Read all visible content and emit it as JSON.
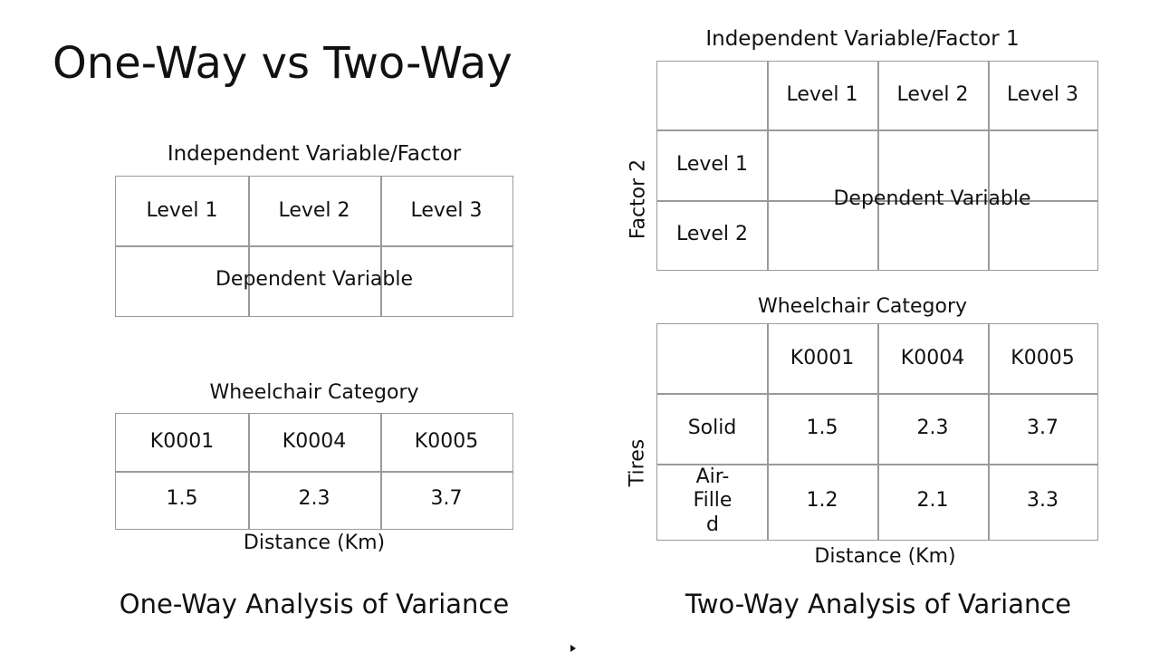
{
  "title": "One-Way vs Two-Way",
  "one_way": {
    "factor_label": "Independent Variable/Factor",
    "levels": [
      "Level 1",
      "Level 2",
      "Level 3"
    ],
    "dependent": "Dependent Variable",
    "example_caption": "Wheelchair Category",
    "categories": [
      "K0001",
      "K0004",
      "K0005"
    ],
    "values": [
      "1.5",
      "2.3",
      "3.7"
    ],
    "unit_label": "Distance (Km)",
    "footer": "One-Way Analysis of Variance"
  },
  "two_way": {
    "factor1_label": "Independent Variable/Factor 1",
    "factor2_label": "Factor 2",
    "levels": [
      "Level 1",
      "Level 2",
      "Level 3"
    ],
    "row_levels": [
      "Level 1",
      "Level 2"
    ],
    "dependent": "Dependent Variable",
    "example_caption": "Wheelchair Category",
    "row_factor_label": "Tires",
    "categories": [
      "K0001",
      "K0004",
      "K0005"
    ],
    "rows": [
      {
        "label": "Solid",
        "values": [
          "1.5",
          "2.3",
          "3.7"
        ]
      },
      {
        "label": "Air-Filled",
        "values": [
          "1.2",
          "2.1",
          "3.3"
        ]
      }
    ],
    "unit_label": "Distance (Km)",
    "footer": "Two-Way Analysis of Variance"
  }
}
